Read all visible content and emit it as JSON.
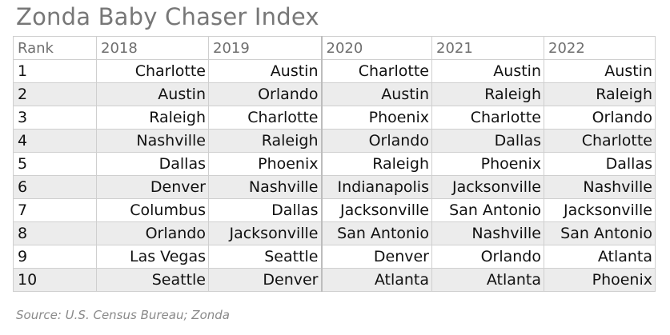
{
  "title": "Zonda Baby Chaser Index",
  "source": "Source: U.S. Census Bureau; Zonda",
  "table": {
    "headers": [
      "Rank",
      "2018",
      "2019",
      "2020",
      "2021",
      "2022"
    ],
    "rows": [
      [
        "1",
        "Charlotte",
        "Austin",
        "Charlotte",
        "Austin",
        "Austin"
      ],
      [
        "2",
        "Austin",
        "Orlando",
        "Austin",
        "Raleigh",
        "Raleigh"
      ],
      [
        "3",
        "Raleigh",
        "Charlotte",
        "Phoenix",
        "Charlotte",
        "Orlando"
      ],
      [
        "4",
        "Nashville",
        "Raleigh",
        "Orlando",
        "Dallas",
        "Charlotte"
      ],
      [
        "5",
        "Dallas",
        "Phoenix",
        "Raleigh",
        "Phoenix",
        "Dallas"
      ],
      [
        "6",
        "Denver",
        "Nashville",
        "Indianapolis",
        "Jacksonville",
        "Nashville"
      ],
      [
        "7",
        "Columbus",
        "Dallas",
        "Jacksonville",
        "San Antonio",
        "Jacksonville"
      ],
      [
        "8",
        "Orlando",
        "Jacksonville",
        "San Antonio",
        "Nashville",
        "San Antonio"
      ],
      [
        "9",
        "Las Vegas",
        "Seattle",
        "Denver",
        "Orlando",
        "Atlanta"
      ],
      [
        "10",
        "Seattle",
        "Denver",
        "Atlanta",
        "Atlanta",
        "Phoenix"
      ]
    ],
    "shaded_rows": [
      1,
      3,
      5,
      7,
      9
    ],
    "shade_color": "#ececec"
  }
}
